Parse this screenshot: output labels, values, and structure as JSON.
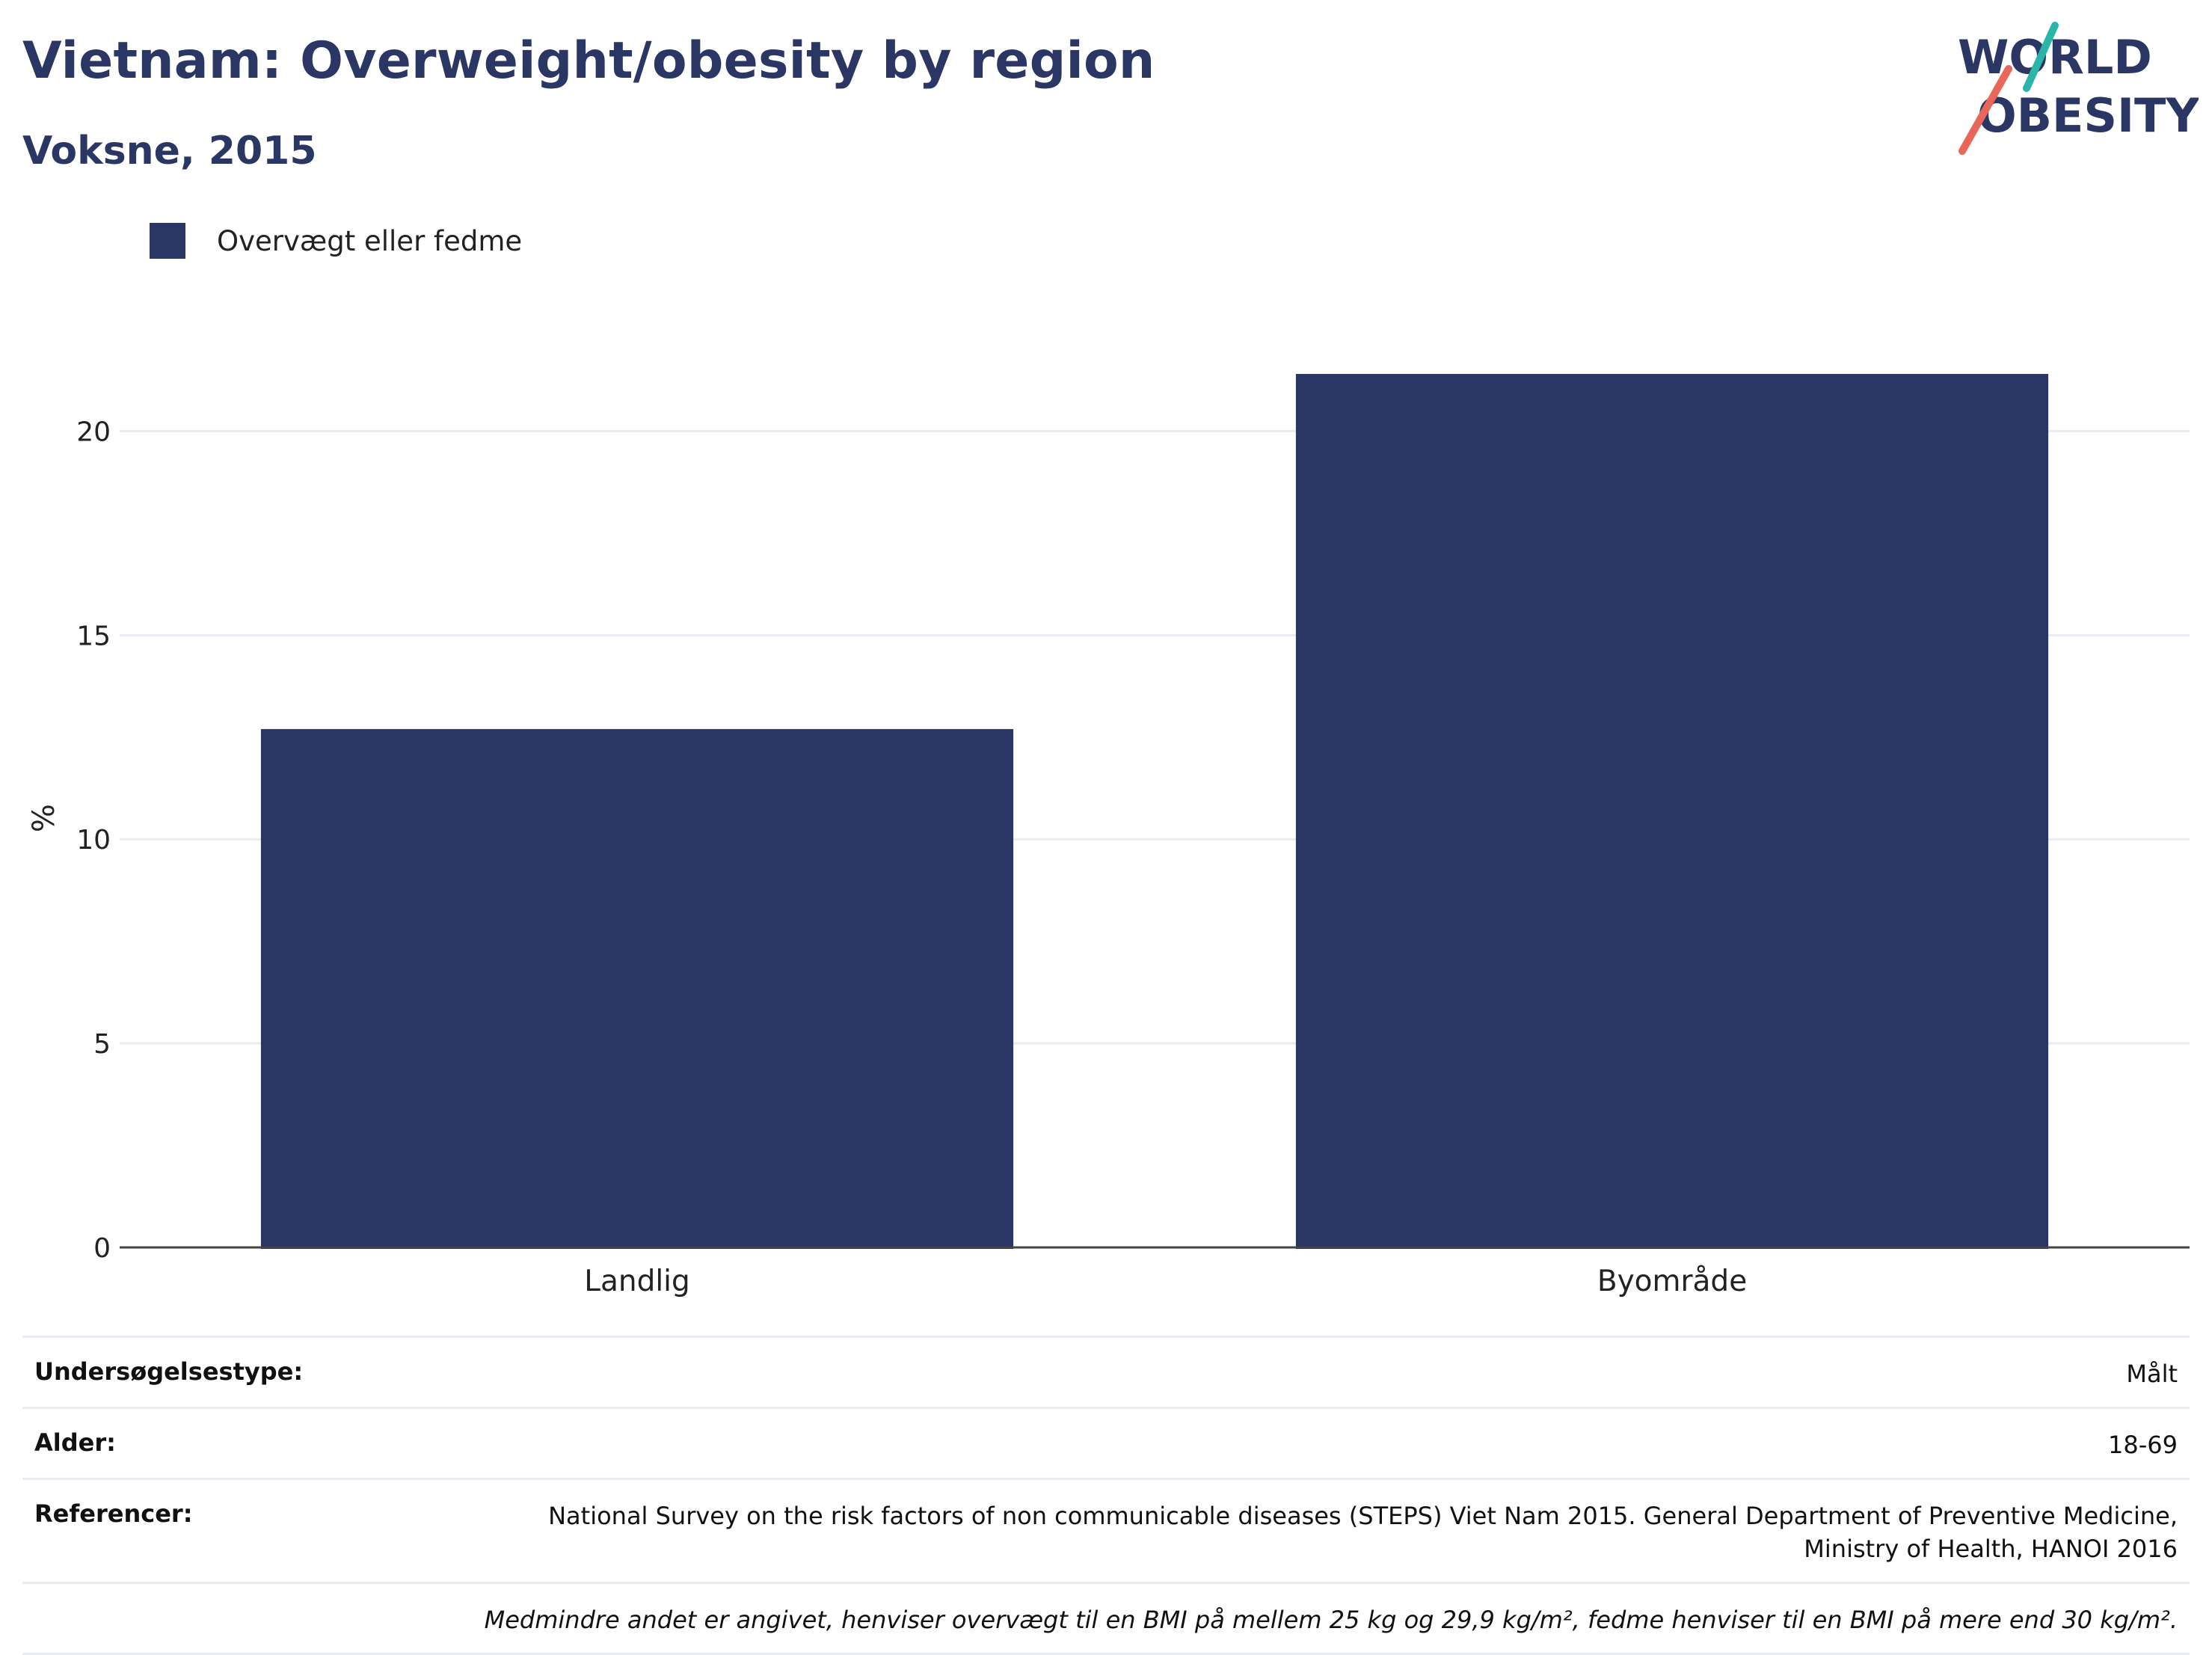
{
  "header": {
    "title": "Vietnam: Overweight/obesity by region",
    "subtitle": "Voksne, 2015",
    "logo_line1": "WORLD",
    "logo_line2": "OBESITY"
  },
  "colors": {
    "bar": "#2a3663",
    "title": "#2a3663",
    "logo_text": "#2a3663",
    "logo_teal": "#2bb5a8",
    "logo_coral": "#e8675a",
    "grid": "#e9ecf2"
  },
  "chart_data": {
    "type": "bar",
    "categories": [
      "Landlig",
      "Byområde"
    ],
    "series": [
      {
        "name": "Overvægt eller fedme",
        "values": [
          12.7,
          21.4
        ]
      }
    ],
    "ylabel": "%",
    "xlabel": "",
    "ylim": [
      0,
      22.5
    ],
    "yticks": [
      0,
      5,
      10,
      15,
      20
    ],
    "grid": true,
    "legend": "top-left"
  },
  "info": {
    "rows": [
      {
        "key": "Undersøgelsestype:",
        "value": "Målt"
      },
      {
        "key": "Alder:",
        "value": "18-69"
      },
      {
        "key": "Referencer:",
        "value": "National Survey on the risk factors of non communicable diseases (STEPS) Viet Nam 2015. General Department of Preventive Medicine, Ministry of Health, HANOI 2016"
      }
    ],
    "note": "Medmindre andet er angivet, henviser overvægt til en BMI på mellem 25 kg og 29,9 kg/m², fedme henviser til en BMI på mere end 30 kg/m²."
  }
}
